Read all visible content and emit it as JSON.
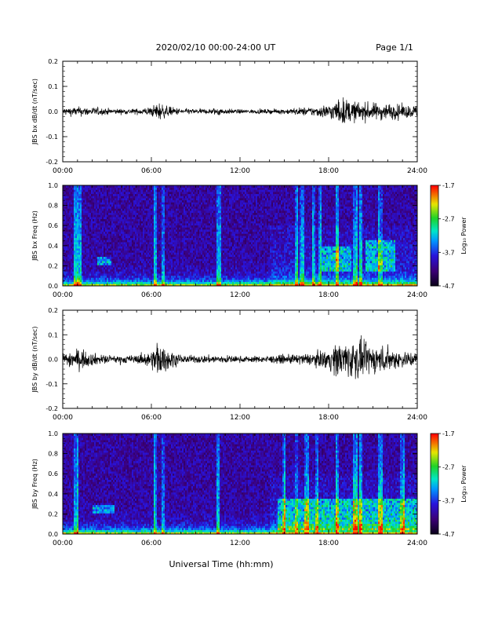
{
  "header": {
    "title": "2020/02/10  00:00-24:00 UT",
    "page": "Page 1/1"
  },
  "xlabel": "Universal Time (hh:mm)",
  "chart_data": [
    {
      "type": "line",
      "ylabel": "JBS bx dB/dt (nT/sec)",
      "x_range_hours": [
        0,
        24
      ],
      "x_tick_labels": [
        "00:00",
        "06:00",
        "12:00",
        "18:00",
        "24:00"
      ],
      "ylim": [
        -0.2,
        0.2
      ],
      "y_tick_labels": [
        "0.2",
        "0.1",
        "0.0",
        "-0.1",
        "-0.2"
      ],
      "envelope": {
        "hours": [
          0,
          1,
          2,
          3,
          4,
          5,
          6,
          6.5,
          7,
          8,
          9,
          10,
          10.5,
          11,
          12,
          13,
          14,
          15,
          16,
          17,
          18,
          18.5,
          19,
          19.5,
          20,
          21,
          22,
          23,
          24
        ],
        "amplitude": [
          0.018,
          0.022,
          0.02,
          0.015,
          0.012,
          0.013,
          0.022,
          0.045,
          0.025,
          0.014,
          0.012,
          0.012,
          0.022,
          0.012,
          0.01,
          0.01,
          0.01,
          0.012,
          0.018,
          0.022,
          0.035,
          0.05,
          0.065,
          0.05,
          0.045,
          0.04,
          0.04,
          0.03,
          0.03
        ]
      }
    },
    {
      "type": "heatmap",
      "ylabel": "JBS bx Freq (Hz)",
      "x_range_hours": [
        0,
        24
      ],
      "x_tick_labels": [
        "00:00",
        "06:00",
        "12:00",
        "18:00",
        "24:00"
      ],
      "ylim": [
        0,
        1.0
      ],
      "y_tick_labels": [
        "1.0",
        "0.8",
        "0.6",
        "0.4",
        "0.2",
        "0.0"
      ],
      "colorbar": {
        "label": "Log₁₀ Power",
        "range": [
          -4.7,
          -1.7
        ],
        "tick_labels": [
          "-1.7",
          "-2.7",
          "-3.7",
          "-4.7"
        ],
        "colormap": "rainbow"
      },
      "bright_bands_hours": [
        0.9,
        1.2,
        6.3,
        6.8,
        10.5,
        10.6,
        15.8,
        16.2,
        17.0,
        17.4,
        18.6,
        19.8,
        20.2,
        21.5
      ],
      "bright_regions": [
        {
          "hours": [
            17.5,
            19.5
          ],
          "freq": [
            0.15,
            0.4
          ]
        },
        {
          "hours": [
            20.5,
            22.5
          ],
          "freq": [
            0.15,
            0.45
          ]
        },
        {
          "hours": [
            2.3,
            3.3
          ],
          "freq": [
            0.2,
            0.3
          ]
        }
      ]
    },
    {
      "type": "line",
      "ylabel": "JBS by dB/dt (nT/sec)",
      "x_range_hours": [
        0,
        24
      ],
      "x_tick_labels": [
        "00:00",
        "06:00",
        "12:00",
        "18:00",
        "24:00"
      ],
      "ylim": [
        -0.2,
        0.2
      ],
      "y_tick_labels": [
        "0.2",
        "0.1",
        "0.0",
        "-0.1",
        "-0.2"
      ],
      "envelope": {
        "hours": [
          0,
          0.5,
          1,
          2,
          3,
          4,
          5,
          6,
          6.4,
          7,
          8,
          9,
          10,
          11,
          12,
          13,
          14,
          15,
          16,
          17,
          18,
          18.5,
          19,
          19.5,
          20,
          20.5,
          21,
          22,
          23,
          24
        ],
        "amplitude": [
          0.03,
          0.045,
          0.05,
          0.03,
          0.02,
          0.018,
          0.02,
          0.04,
          0.09,
          0.05,
          0.02,
          0.018,
          0.02,
          0.02,
          0.015,
          0.015,
          0.018,
          0.02,
          0.025,
          0.03,
          0.05,
          0.08,
          0.09,
          0.09,
          0.1,
          0.07,
          0.07,
          0.06,
          0.04,
          0.035
        ]
      }
    },
    {
      "type": "heatmap",
      "ylabel": "JBS by Freq (Hz)",
      "x_range_hours": [
        0,
        24
      ],
      "x_tick_labels": [
        "00:00",
        "06:00",
        "12:00",
        "18:00",
        "24:00"
      ],
      "ylim": [
        0,
        1.0
      ],
      "y_tick_labels": [
        "1.0",
        "0.8",
        "0.6",
        "0.4",
        "0.2",
        "0.0"
      ],
      "colorbar": {
        "label": "Log₁₀ Power",
        "range": [
          -4.7,
          -1.7
        ],
        "tick_labels": [
          "-1.7",
          "-2.7",
          "-3.7",
          "-4.7"
        ],
        "colormap": "rainbow"
      },
      "bright_bands_hours": [
        0.9,
        6.3,
        6.8,
        10.5,
        15.0,
        15.8,
        16.5,
        17.2,
        18.6,
        19.8,
        20.2,
        21.5,
        23.0
      ],
      "bright_regions": [
        {
          "hours": [
            14.5,
            24
          ],
          "freq": [
            0.05,
            0.35
          ]
        },
        {
          "hours": [
            2.0,
            3.5
          ],
          "freq": [
            0.2,
            0.3
          ]
        }
      ]
    }
  ]
}
